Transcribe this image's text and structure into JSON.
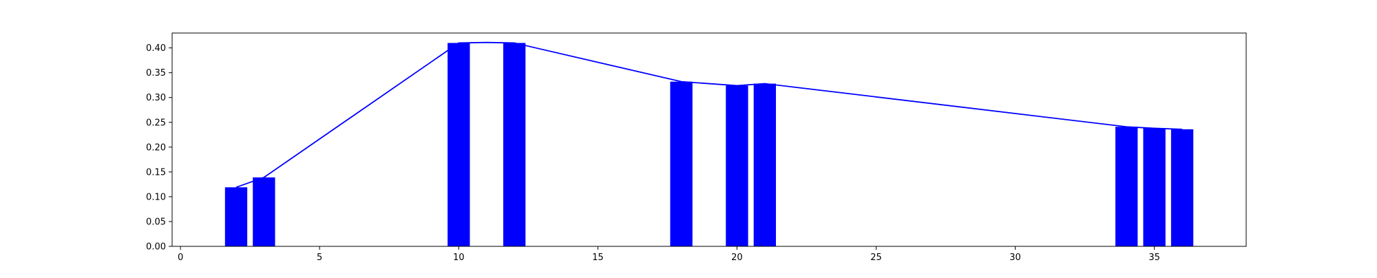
{
  "chart_data": {
    "type": "bar",
    "title": "",
    "xlabel": "",
    "ylabel": "",
    "xlim": [
      -0.3,
      38.3
    ],
    "ylim": [
      0,
      0.43
    ],
    "grid": false,
    "bar_color": "#0000ff",
    "line_color": "#0000ff",
    "bar_width": 0.8,
    "x_ticks": [
      0,
      5,
      10,
      15,
      20,
      25,
      30,
      35
    ],
    "y_ticks": [
      0.0,
      0.05,
      0.1,
      0.15,
      0.2,
      0.25,
      0.3,
      0.35,
      0.4
    ],
    "x_tick_labels": [
      "0",
      "5",
      "10",
      "15",
      "20",
      "25",
      "30",
      "35"
    ],
    "y_tick_labels": [
      "0.00",
      "0.05",
      "0.10",
      "0.15",
      "0.20",
      "0.25",
      "0.30",
      "0.35",
      "0.40"
    ],
    "bars": {
      "x": [
        2,
        3,
        10,
        12,
        18,
        20,
        21,
        34,
        35,
        36
      ],
      "values": [
        0.119,
        0.139,
        0.41,
        0.41,
        0.332,
        0.324,
        0.328,
        0.241,
        0.238,
        0.236
      ]
    },
    "line": {
      "x": [
        2,
        3,
        10,
        11,
        12,
        18,
        20,
        21,
        34,
        35,
        36
      ],
      "values": [
        0.119,
        0.139,
        0.41,
        0.411,
        0.41,
        0.332,
        0.324,
        0.328,
        0.241,
        0.238,
        0.236
      ]
    }
  }
}
